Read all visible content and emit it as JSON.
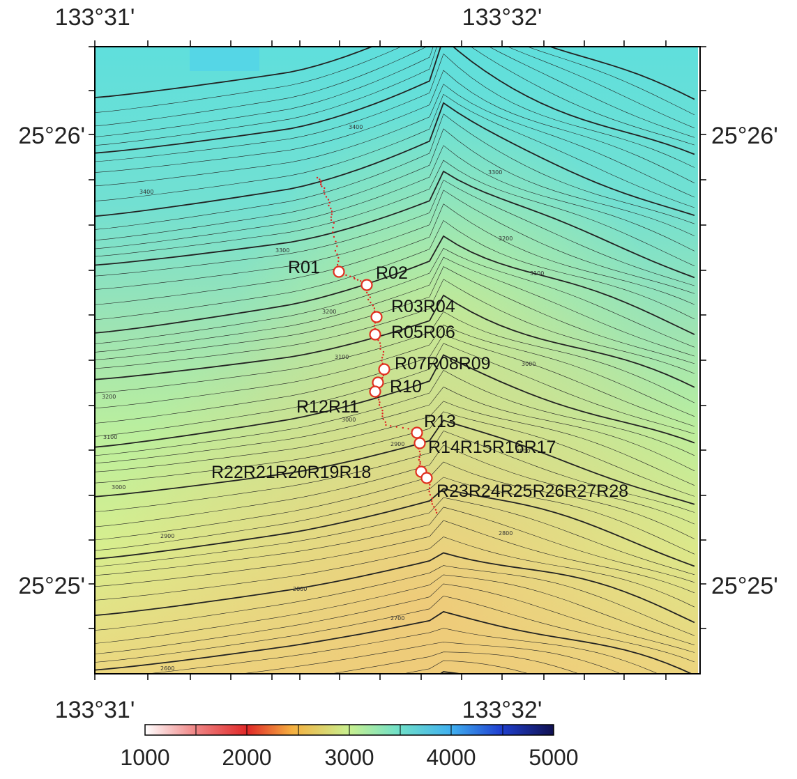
{
  "map": {
    "lon_labels": [
      "133°31'",
      "133°32'"
    ],
    "lat_labels": [
      "25°26'",
      "25°25'"
    ]
  },
  "sites": [
    {
      "id": "R01",
      "label": "R01"
    },
    {
      "id": "R02",
      "label": "R02"
    },
    {
      "id": "R03R04",
      "label": "R03R04"
    },
    {
      "id": "R05R06",
      "label": "R05R06"
    },
    {
      "id": "R07R08R09",
      "label": "R07R08R09"
    },
    {
      "id": "R10",
      "label": "R10"
    },
    {
      "id": "R12R11",
      "label": "R12R11"
    },
    {
      "id": "R13",
      "label": "R13"
    },
    {
      "id": "R14R15R16R17",
      "label": "R14R15R16R17"
    },
    {
      "id": "R22R21R20R19R18",
      "label": "R22R21R20R19R18"
    },
    {
      "id": "R23R24R25R26R27R28",
      "label": "R23R24R25R26R27R28"
    }
  ],
  "contour_labels": [
    "3400",
    "3400",
    "3300",
    "3300",
    "3200",
    "3200",
    "3100",
    "3100",
    "3200",
    "3100",
    "3000",
    "3000",
    "3000",
    "2900",
    "2900",
    "2900",
    "2800",
    "2800",
    "2700",
    "2600"
  ],
  "colorbar": {
    "ticks": [
      "1000",
      "2000",
      "3000",
      "4000",
      "5000"
    ]
  },
  "colors": {
    "site_marker": "#e03020",
    "track": "#e02020"
  }
}
